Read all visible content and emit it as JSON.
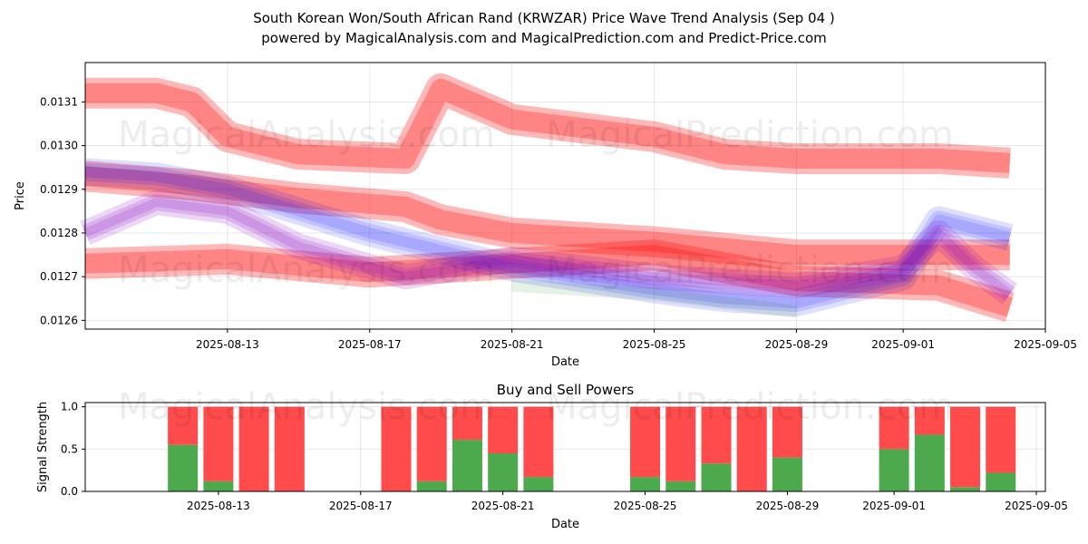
{
  "figure": {
    "title": "South Korean Won/South African Rand (KRWZAR) Price Wave Trend Analysis (Sep 04 )",
    "subtitle": "powered by MagicalAnalysis.com and MagicalPrediction.com and Predict-Price.com",
    "watermarks": [
      "MagicalAnalysis.com",
      "MagicalPrediction.com"
    ]
  },
  "chart_data": [
    {
      "type": "area",
      "title": "",
      "xlabel": "Date",
      "ylabel": "Price",
      "x_tick_labels": [
        "2025-08-13",
        "2025-08-17",
        "2025-08-21",
        "2025-08-25",
        "2025-08-29",
        "2025-09-01",
        "2025-09-05"
      ],
      "y_tick_labels": [
        "0.0126",
        "0.0127",
        "0.0128",
        "0.0129",
        "0.0130",
        "0.0131"
      ],
      "ylim": [
        0.01258,
        0.01319
      ],
      "xlim": [
        "2025-08-09",
        "2025-09-05"
      ],
      "grid": true,
      "colors": {
        "red_band": "#ff0000",
        "blue_band": "#0000ff",
        "purple_band": "#8000c0",
        "green_band": "#008000"
      },
      "series": [
        {
          "color": "red_band",
          "x": [
            "2025-08-09",
            "2025-08-11",
            "2025-08-12",
            "2025-08-13",
            "2025-08-15",
            "2025-08-18",
            "2025-08-19",
            "2025-08-21",
            "2025-08-23",
            "2025-08-25",
            "2025-08-27",
            "2025-08-29",
            "2025-09-02",
            "2025-09-04"
          ],
          "values": [
            0.01312,
            0.01312,
            0.0131,
            0.01302,
            0.01298,
            0.01297,
            0.01313,
            0.01306,
            0.01304,
            0.01302,
            0.01298,
            0.01297,
            0.01297,
            0.01296
          ]
        },
        {
          "color": "red_band",
          "x": [
            "2025-08-09",
            "2025-08-12",
            "2025-08-13",
            "2025-08-15",
            "2025-08-18",
            "2025-08-19",
            "2025-08-21",
            "2025-08-25",
            "2025-08-29",
            "2025-09-01",
            "2025-09-04"
          ],
          "values": [
            0.01293,
            0.01291,
            0.0129,
            0.01288,
            0.01286,
            0.01283,
            0.0128,
            0.01278,
            0.01275,
            0.01275,
            0.01275
          ]
        },
        {
          "color": "red_band",
          "x": [
            "2025-08-09",
            "2025-08-13",
            "2025-08-17",
            "2025-08-21",
            "2025-08-25",
            "2025-08-29",
            "2025-09-02",
            "2025-09-04"
          ],
          "values": [
            0.01273,
            0.01274,
            0.01271,
            0.01273,
            0.01275,
            0.01269,
            0.01268,
            0.01263
          ]
        },
        {
          "color": "blue_band",
          "x": [
            "2025-08-09",
            "2025-08-11",
            "2025-08-13",
            "2025-08-17",
            "2025-08-21",
            "2025-08-25",
            "2025-08-27",
            "2025-08-29",
            "2025-09-01",
            "2025-09-02",
            "2025-09-04"
          ],
          "values": [
            0.01294,
            0.01293,
            0.0129,
            0.0128,
            0.01272,
            0.01267,
            0.01265,
            0.01264,
            0.0127,
            0.01283,
            0.01279
          ]
        },
        {
          "color": "purple_band",
          "x": [
            "2025-08-09",
            "2025-08-11",
            "2025-08-13",
            "2025-08-15",
            "2025-08-18",
            "2025-08-21",
            "2025-08-25",
            "2025-08-29",
            "2025-09-01",
            "2025-09-02",
            "2025-09-03",
            "2025-09-04"
          ],
          "values": [
            0.0128,
            0.01287,
            0.01285,
            0.01277,
            0.0127,
            0.01274,
            0.0127,
            0.01268,
            0.01272,
            0.0128,
            0.01272,
            0.01266
          ]
        },
        {
          "color": "green_band",
          "x": [
            "2025-08-21",
            "2025-08-25",
            "2025-08-27",
            "2025-08-29"
          ],
          "values": [
            0.01268,
            0.01266,
            0.01264,
            0.01262
          ]
        }
      ]
    },
    {
      "type": "bar",
      "title": "Buy and Sell Powers",
      "xlabel": "Date",
      "ylabel": "Signal Strength",
      "x_tick_labels": [
        "2025-08-13",
        "2025-08-17",
        "2025-08-21",
        "2025-08-25",
        "2025-08-29",
        "2025-09-01",
        "2025-09-05"
      ],
      "y_tick_labels": [
        "0.0",
        "0.5",
        "1.0"
      ],
      "ylim": [
        0,
        1.05
      ],
      "grid": true,
      "colors": {
        "buy": "#4caa4c",
        "sell": "#ff4b4b"
      },
      "categories": [
        "2025-08-12",
        "2025-08-13",
        "2025-08-14",
        "2025-08-15",
        "2025-08-18",
        "2025-08-19",
        "2025-08-20",
        "2025-08-21",
        "2025-08-22",
        "2025-08-25",
        "2025-08-26",
        "2025-08-27",
        "2025-08-28",
        "2025-08-29",
        "2025-09-01",
        "2025-09-02",
        "2025-09-03",
        "2025-09-04"
      ],
      "series": [
        {
          "name": "Buy",
          "values": [
            0.55,
            0.12,
            0.0,
            0.0,
            0.0,
            0.12,
            0.61,
            0.45,
            0.17,
            0.17,
            0.12,
            0.33,
            0.0,
            0.4,
            0.5,
            0.67,
            0.05,
            0.22
          ]
        },
        {
          "name": "Sell",
          "values": [
            0.45,
            0.88,
            1.0,
            1.0,
            1.0,
            0.88,
            0.39,
            0.55,
            0.83,
            0.83,
            0.88,
            0.67,
            1.0,
            0.6,
            0.5,
            0.33,
            0.95,
            0.78
          ]
        }
      ]
    }
  ]
}
